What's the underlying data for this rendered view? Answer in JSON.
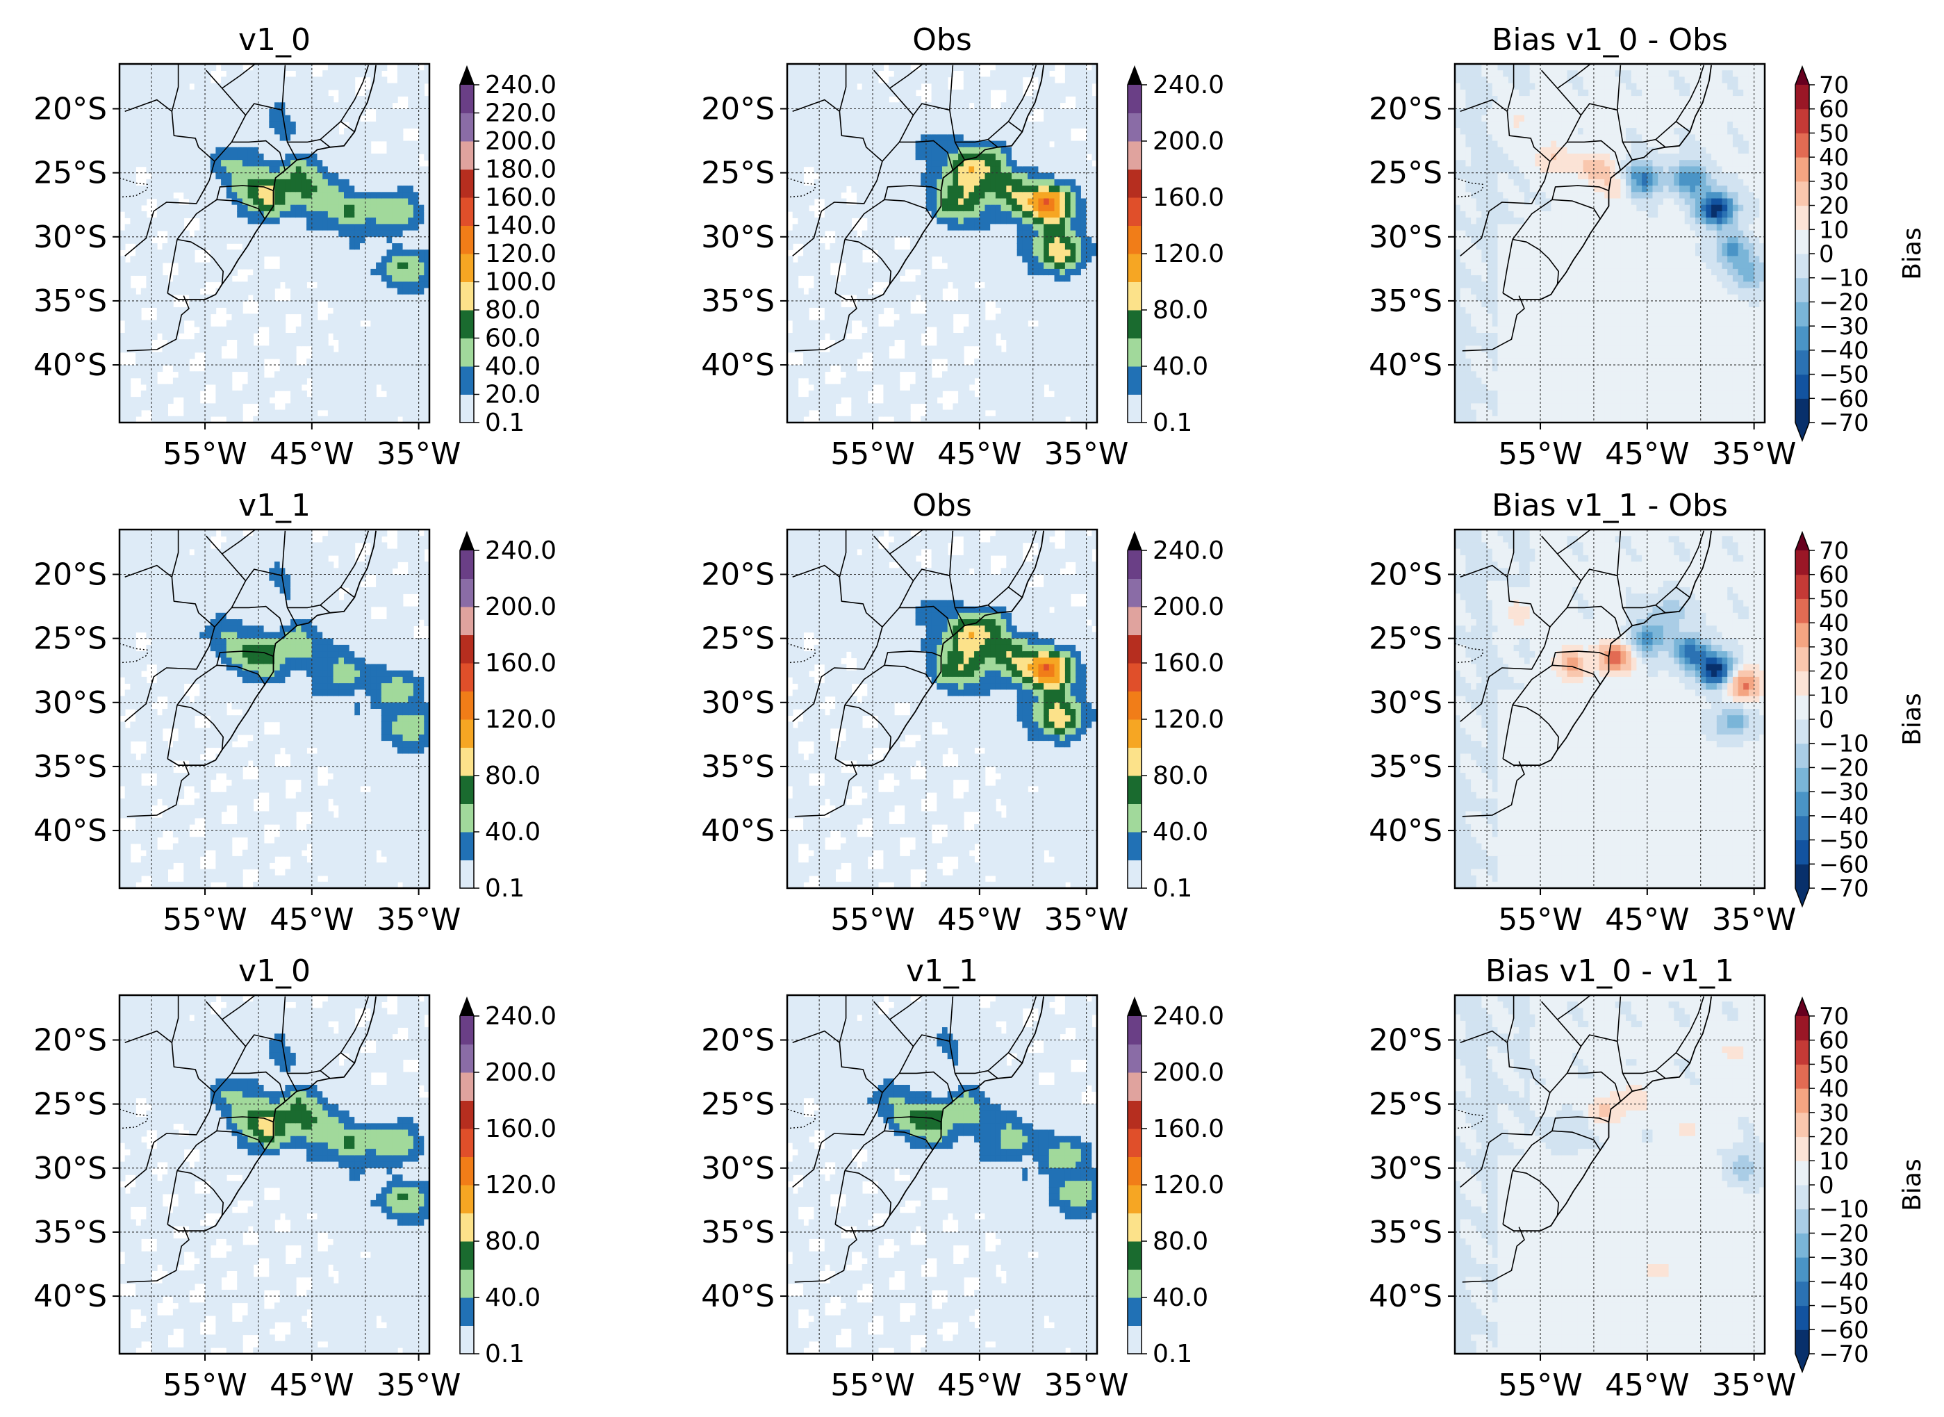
{
  "figure": {
    "type": "map-contour-grid",
    "rows": 3,
    "cols": 3
  },
  "chart_data": [
    {
      "type": "heatmap",
      "variable": "precipitation",
      "title": "v1_0",
      "lat_ticks": [
        "20°S",
        "25°S",
        "30°S",
        "35°S",
        "40°S"
      ],
      "lon_ticks": [
        "55°W",
        "45°W",
        "35°W"
      ],
      "colorbar": {
        "kind": "precip",
        "levels": [
          0.1,
          20,
          40,
          60,
          80,
          100,
          120,
          140,
          160,
          180,
          200,
          220,
          240
        ],
        "labels": [
          "0.1",
          "20.0",
          "40.0",
          "60.0",
          "80.0",
          "100.0",
          "120.0",
          "140.0",
          "160.0",
          "180.0",
          "200.0",
          "220.0",
          "240.0"
        ],
        "extend": "max",
        "label": ""
      },
      "blobs": [
        {
          "lon": -49.5,
          "lat": -26.8,
          "max": 75
        },
        {
          "lon": -46,
          "lat": -25.2,
          "max": 55
        },
        {
          "lon": -41,
          "lat": -28,
          "max": 45
        },
        {
          "lon": -37,
          "lat": -28,
          "max": 55
        },
        {
          "lon": -36,
          "lat": -32.5,
          "max": 50
        },
        {
          "lon": -52,
          "lat": -24.5,
          "max": 30
        },
        {
          "lon": -48,
          "lat": -21,
          "max": 25
        },
        {
          "lon": -44,
          "lat": -27,
          "max": 35
        }
      ]
    },
    {
      "type": "heatmap",
      "variable": "precipitation",
      "title": "Obs",
      "lat_ticks": [
        "20°S",
        "25°S",
        "30°S",
        "35°S",
        "40°S"
      ],
      "lon_ticks": [
        "55°W",
        "45°W",
        "35°W"
      ],
      "colorbar": {
        "kind": "precip",
        "levels": [
          0.1,
          20,
          40,
          60,
          80,
          100,
          120,
          140,
          160,
          180,
          200,
          220,
          240
        ],
        "labels": [
          "0.1",
          "40.0",
          "80.0",
          "120.0",
          "160.0",
          "200.0",
          "240.0"
        ],
        "extend": "max",
        "label": ""
      },
      "blobs": [
        {
          "lon": -46,
          "lat": -25,
          "max": 75
        },
        {
          "lon": -47,
          "lat": -27.5,
          "max": 60
        },
        {
          "lon": -42,
          "lat": -26.5,
          "max": 65
        },
        {
          "lon": -38.5,
          "lat": -27.5,
          "max": 130
        },
        {
          "lon": -37.5,
          "lat": -31,
          "max": 85
        },
        {
          "lon": -44,
          "lat": -24,
          "max": 40
        },
        {
          "lon": -49,
          "lat": -23,
          "max": 25
        }
      ]
    },
    {
      "type": "heatmap",
      "variable": "bias",
      "title": "Bias v1_0 - Obs",
      "lat_ticks": [
        "20°S",
        "25°S",
        "30°S",
        "35°S",
        "40°S"
      ],
      "lon_ticks": [
        "55°W",
        "45°W",
        "35°W"
      ],
      "colorbar": {
        "kind": "bias",
        "levels": [
          -70,
          -60,
          -50,
          -40,
          -30,
          -20,
          -10,
          0,
          10,
          20,
          30,
          40,
          50,
          60,
          70
        ],
        "labels": [
          "−70",
          "−60",
          "−50",
          "−40",
          "−30",
          "−20",
          "−10",
          "0",
          "10",
          "20",
          "30",
          "40",
          "50",
          "60",
          "70"
        ],
        "extend": "both",
        "label": "Bias"
      },
      "blobs": [
        {
          "lon": -38.5,
          "lat": -27.8,
          "max": -70
        },
        {
          "lon": -41,
          "lat": -25.5,
          "max": -40
        },
        {
          "lon": -45.5,
          "lat": -25.5,
          "max": -45
        },
        {
          "lon": -37,
          "lat": -31,
          "max": -35
        },
        {
          "lon": -50,
          "lat": -24.5,
          "max": 25
        },
        {
          "lon": -54,
          "lat": -24,
          "max": 20
        },
        {
          "lon": -48,
          "lat": -26,
          "max": 18
        },
        {
          "lon": -35.5,
          "lat": -33,
          "max": -25
        },
        {
          "lon": -57,
          "lat": -21,
          "max": 12
        }
      ]
    },
    {
      "type": "heatmap",
      "variable": "precipitation",
      "title": "v1_1",
      "lat_ticks": [
        "20°S",
        "25°S",
        "30°S",
        "35°S",
        "40°S"
      ],
      "lon_ticks": [
        "55°W",
        "45°W",
        "35°W"
      ],
      "colorbar": {
        "kind": "precip",
        "levels": [
          0.1,
          20,
          40,
          60,
          80,
          100,
          120,
          140,
          160,
          180,
          200,
          220,
          240
        ],
        "labels": [
          "0.1",
          "40.0",
          "80.0",
          "120.0",
          "160.0",
          "200.0",
          "240.0"
        ],
        "extend": "max",
        "label": ""
      },
      "blobs": [
        {
          "lon": -50,
          "lat": -26.5,
          "max": 60
        },
        {
          "lon": -46,
          "lat": -25.2,
          "max": 45
        },
        {
          "lon": -42,
          "lat": -27.5,
          "max": 45
        },
        {
          "lon": -37,
          "lat": -29,
          "max": 50
        },
        {
          "lon": -35.5,
          "lat": -32,
          "max": 42
        },
        {
          "lon": -53,
          "lat": -25,
          "max": 25
        },
        {
          "lon": -48,
          "lat": -20.5,
          "max": 22
        }
      ]
    },
    {
      "type": "heatmap",
      "variable": "precipitation",
      "title": "Obs",
      "lat_ticks": [
        "20°S",
        "25°S",
        "30°S",
        "35°S",
        "40°S"
      ],
      "lon_ticks": [
        "55°W",
        "45°W",
        "35°W"
      ],
      "colorbar": {
        "kind": "precip",
        "levels": [
          0.1,
          20,
          40,
          60,
          80,
          100,
          120,
          140,
          160,
          180,
          200,
          220,
          240
        ],
        "labels": [
          "0.1",
          "40.0",
          "80.0",
          "120.0",
          "160.0",
          "200.0",
          "240.0"
        ],
        "extend": "max",
        "label": ""
      },
      "blobs": [
        {
          "lon": -46,
          "lat": -25,
          "max": 75
        },
        {
          "lon": -47,
          "lat": -27.5,
          "max": 60
        },
        {
          "lon": -42,
          "lat": -26.5,
          "max": 65
        },
        {
          "lon": -38.5,
          "lat": -27.5,
          "max": 130
        },
        {
          "lon": -37.5,
          "lat": -31,
          "max": 85
        },
        {
          "lon": -44,
          "lat": -24,
          "max": 40
        },
        {
          "lon": -49,
          "lat": -23,
          "max": 25
        }
      ]
    },
    {
      "type": "heatmap",
      "variable": "bias",
      "title": "Bias v1_1 - Obs",
      "lat_ticks": [
        "20°S",
        "25°S",
        "30°S",
        "35°S",
        "40°S"
      ],
      "lon_ticks": [
        "55°W",
        "45°W",
        "35°W"
      ],
      "colorbar": {
        "kind": "bias",
        "levels": [
          -70,
          -60,
          -50,
          -40,
          -30,
          -20,
          -10,
          0,
          10,
          20,
          30,
          40,
          50,
          60,
          70
        ],
        "labels": [
          "−70",
          "−60",
          "−50",
          "−40",
          "−30",
          "−20",
          "−10",
          "0",
          "10",
          "20",
          "30",
          "40",
          "50",
          "60",
          "70"
        ],
        "extend": "both",
        "label": "Bias"
      },
      "blobs": [
        {
          "lon": -38.5,
          "lat": -27.5,
          "max": -70
        },
        {
          "lon": -41,
          "lat": -26,
          "max": -45
        },
        {
          "lon": -45,
          "lat": -25,
          "max": -35
        },
        {
          "lon": -36,
          "lat": -28.5,
          "max": 45
        },
        {
          "lon": -48,
          "lat": -26.5,
          "max": 45
        },
        {
          "lon": -52,
          "lat": -27,
          "max": 30
        },
        {
          "lon": -37,
          "lat": -31.5,
          "max": -30
        },
        {
          "lon": -43,
          "lat": -23,
          "max": -20
        },
        {
          "lon": -57,
          "lat": -23,
          "max": 15
        }
      ]
    },
    {
      "type": "heatmap",
      "variable": "precipitation",
      "title": "v1_0",
      "lat_ticks": [
        "20°S",
        "25°S",
        "30°S",
        "35°S",
        "40°S"
      ],
      "lon_ticks": [
        "55°W",
        "45°W",
        "35°W"
      ],
      "colorbar": {
        "kind": "precip",
        "levels": [
          0.1,
          20,
          40,
          60,
          80,
          100,
          120,
          140,
          160,
          180,
          200,
          220,
          240
        ],
        "labels": [
          "0.1",
          "40.0",
          "80.0",
          "120.0",
          "160.0",
          "200.0",
          "240.0"
        ],
        "extend": "max",
        "label": ""
      },
      "blobs": [
        {
          "lon": -49.5,
          "lat": -26.8,
          "max": 75
        },
        {
          "lon": -46,
          "lat": -25.2,
          "max": 55
        },
        {
          "lon": -41,
          "lat": -28,
          "max": 45
        },
        {
          "lon": -37,
          "lat": -28,
          "max": 55
        },
        {
          "lon": -36,
          "lat": -32.5,
          "max": 50
        },
        {
          "lon": -52,
          "lat": -24.5,
          "max": 30
        },
        {
          "lon": -48,
          "lat": -21,
          "max": 25
        },
        {
          "lon": -44,
          "lat": -27,
          "max": 35
        }
      ]
    },
    {
      "type": "heatmap",
      "variable": "precipitation",
      "title": "v1_1",
      "lat_ticks": [
        "20°S",
        "25°S",
        "30°S",
        "35°S",
        "40°S"
      ],
      "lon_ticks": [
        "55°W",
        "45°W",
        "35°W"
      ],
      "colorbar": {
        "kind": "precip",
        "levels": [
          0.1,
          20,
          40,
          60,
          80,
          100,
          120,
          140,
          160,
          180,
          200,
          220,
          240
        ],
        "labels": [
          "0.1",
          "40.0",
          "80.0",
          "120.0",
          "160.0",
          "200.0",
          "240.0"
        ],
        "extend": "max",
        "label": ""
      },
      "blobs": [
        {
          "lon": -50,
          "lat": -26.5,
          "max": 60
        },
        {
          "lon": -46,
          "lat": -25.2,
          "max": 45
        },
        {
          "lon": -42,
          "lat": -27.5,
          "max": 45
        },
        {
          "lon": -37,
          "lat": -29,
          "max": 50
        },
        {
          "lon": -35.5,
          "lat": -32,
          "max": 42
        },
        {
          "lon": -53,
          "lat": -25,
          "max": 25
        },
        {
          "lon": -48,
          "lat": -20.5,
          "max": 22
        }
      ]
    },
    {
      "type": "heatmap",
      "variable": "bias",
      "title": "Bias v1_0 - v1_1",
      "lat_ticks": [
        "20°S",
        "25°S",
        "30°S",
        "35°S",
        "40°S"
      ],
      "lon_ticks": [
        "55°W",
        "45°W",
        "35°W"
      ],
      "colorbar": {
        "kind": "bias",
        "levels": [
          -70,
          -60,
          -50,
          -40,
          -30,
          -20,
          -10,
          0,
          10,
          20,
          30,
          40,
          50,
          60,
          70
        ],
        "labels": [
          "−70",
          "−60",
          "−50",
          "−40",
          "−30",
          "−20",
          "−10",
          "0",
          "10",
          "20",
          "30",
          "40",
          "50",
          "60",
          "70"
        ],
        "extend": "both",
        "label": "Bias"
      },
      "blobs": [
        {
          "lon": -49,
          "lat": -25.5,
          "max": 20
        },
        {
          "lon": -46,
          "lat": -24.5,
          "max": 15
        },
        {
          "lon": -36,
          "lat": -30,
          "max": -18
        },
        {
          "lon": -41,
          "lat": -27,
          "max": 12
        },
        {
          "lon": -37,
          "lat": -21,
          "max": 12
        },
        {
          "lon": -52,
          "lat": -27,
          "max": -12
        },
        {
          "lon": -44,
          "lat": -38,
          "max": 10
        }
      ]
    }
  ],
  "colors": {
    "precip": [
      "#deebf7",
      "#2171b5",
      "#a1d99b",
      "#1a6b2f",
      "#fce28a",
      "#f6a623",
      "#f17d18",
      "#e04f2a",
      "#b62e1f",
      "#e0a39e",
      "#8a6ca6",
      "#6a3f86",
      "#111111"
    ],
    "precip_extend": "#000000",
    "bias": [
      "#08306b",
      "#1253a0",
      "#2b72b3",
      "#4a94c6",
      "#7ab5d8",
      "#aacde6",
      "#d2e3f1",
      "#eaf1f6",
      "#fbe3d6",
      "#f9c7ae",
      "#f4a582",
      "#e26b53",
      "#c43a36",
      "#9a1726"
    ],
    "bias_extend_low": "#08306b",
    "bias_extend_high": "#67001f"
  }
}
